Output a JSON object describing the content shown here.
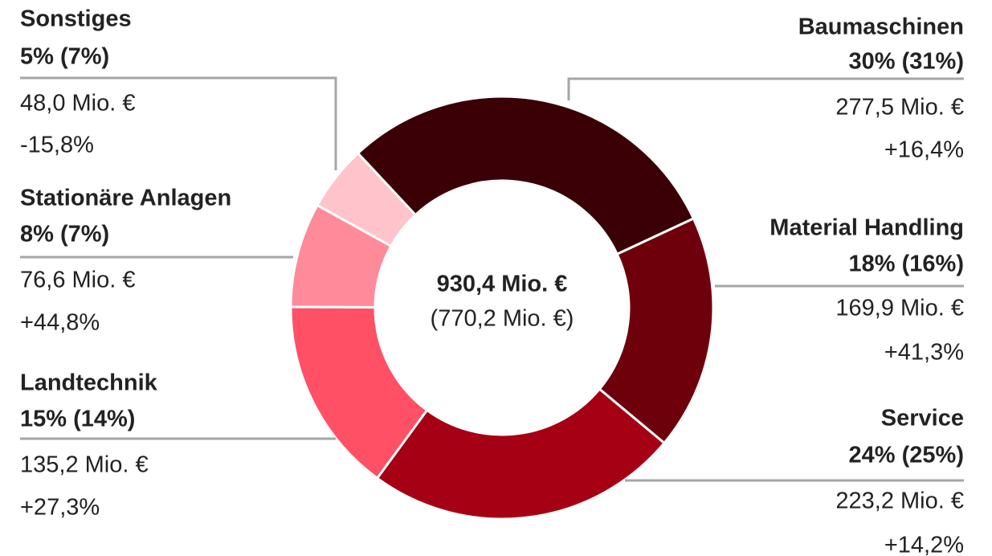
{
  "chart_data": {
    "type": "pie",
    "donut": true,
    "categories": [
      "Baumaschinen",
      "Material Handling",
      "Service",
      "Landtechnik",
      "Stationäre Anlagen",
      "Sonstiges"
    ],
    "values": [
      30,
      18,
      24,
      15,
      8,
      5
    ],
    "value_labels": [
      "30% (31%)",
      "18% (16%)",
      "24% (25%)",
      "15% (14%)",
      "8% (7%)",
      "5% (7%)"
    ],
    "amounts": [
      "277,5 Mio. €",
      "169,9 Mio. €",
      "223,2 Mio. €",
      "135,2 Mio. €",
      "76,6 Mio. €",
      "48,0 Mio. €"
    ],
    "changes": [
      "+16,4%",
      "+41,3%",
      "+14,2%",
      "+27,3%",
      "+44,8%",
      "-15,8%"
    ],
    "colors": [
      "#3a0006",
      "#6e000c",
      "#a50013",
      "#ff5066",
      "#ff8a99",
      "#ffc3cc"
    ],
    "center_label": "930,4 Mio. €",
    "center_sublabel": "(770,2 Mio. €)"
  }
}
